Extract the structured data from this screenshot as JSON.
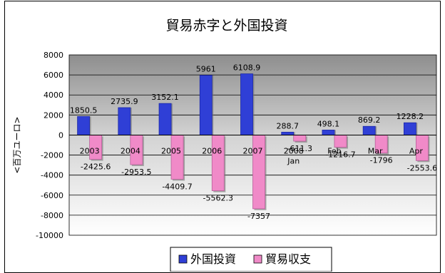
{
  "chart_data": {
    "type": "bar",
    "title": "貿易赤字と外国投資",
    "xlabel": "",
    "ylabel": "<百万ユーロ>",
    "ylim": [
      -10000,
      8000
    ],
    "ytick_step": 2000,
    "grid": true,
    "legend_position": "bottom",
    "categories": [
      [
        "2003"
      ],
      [
        "2004"
      ],
      [
        "2005"
      ],
      [
        "2006"
      ],
      [
        "2007"
      ],
      [
        "2008",
        "Jan"
      ],
      [
        "Feb"
      ],
      [
        "Mar"
      ],
      [
        "Apr"
      ]
    ],
    "series": [
      {
        "name": "外国投資",
        "color": "#2F3FD6",
        "values": [
          1850.5,
          2735.9,
          3152.1,
          5961,
          6108.9,
          288.7,
          498.1,
          869.2,
          1228.2
        ],
        "labels": [
          "1850.5",
          "2735.9",
          "3152.1",
          "5961",
          "6108.9",
          "288.7",
          "498.1",
          "869.2",
          "1228.2"
        ]
      },
      {
        "name": "貿易収支",
        "color": "#F08AC8",
        "values": [
          -2425.6,
          -2953.5,
          -4409.7,
          -5562.3,
          -7357,
          -611.3,
          -1216.7,
          -1796,
          -2553.6
        ],
        "labels": [
          "-2425.6",
          "-2953.5",
          "-4409.7",
          "-5562.3",
          "-7357",
          "-611.3",
          "-1216.7",
          "-1796",
          "-2553.6"
        ]
      }
    ]
  }
}
